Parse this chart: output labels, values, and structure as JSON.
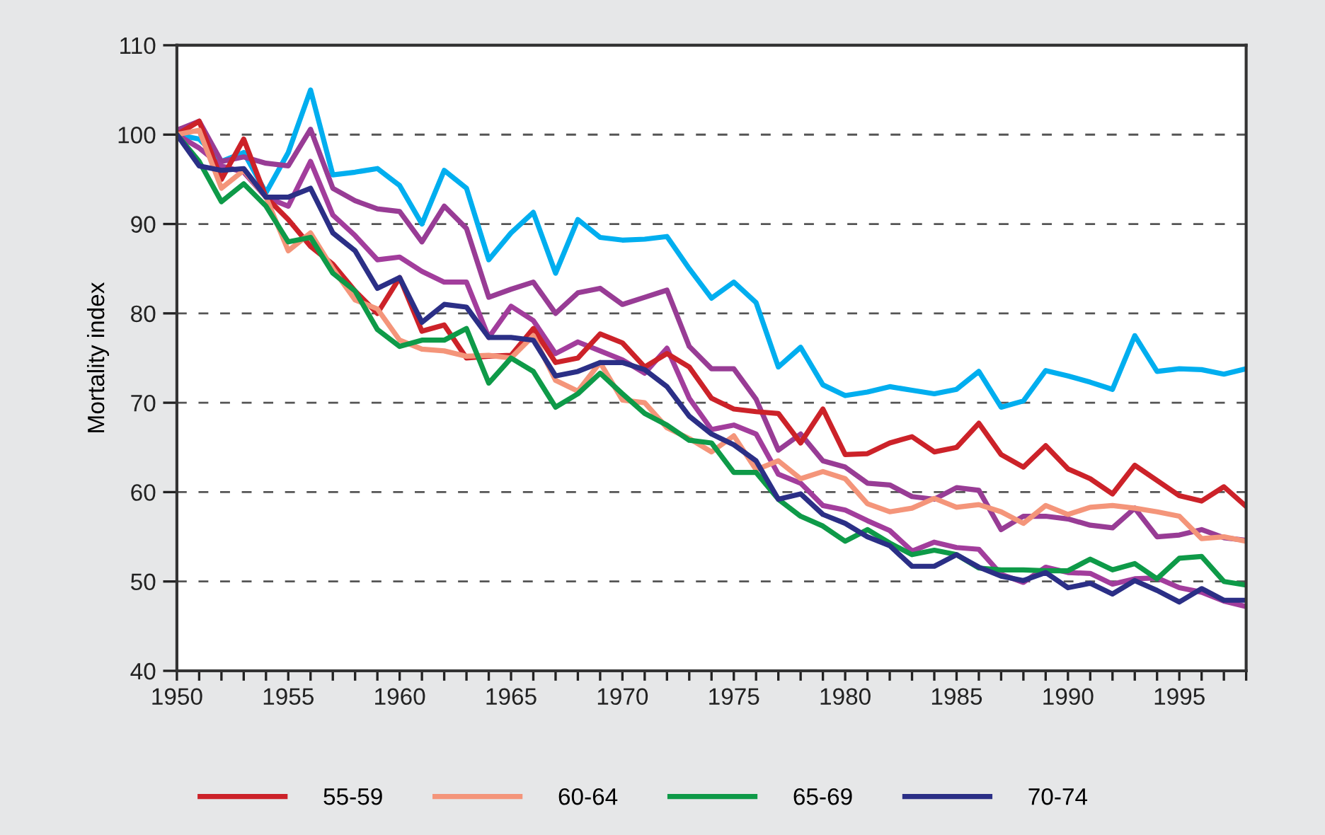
{
  "chart_data": {
    "type": "line",
    "ylabel": "Mortality index",
    "x": [
      1950,
      1951,
      1952,
      1953,
      1954,
      1955,
      1956,
      1957,
      1958,
      1959,
      1960,
      1961,
      1962,
      1963,
      1964,
      1965,
      1966,
      1967,
      1968,
      1969,
      1970,
      1971,
      1972,
      1973,
      1974,
      1975,
      1976,
      1977,
      1978,
      1979,
      1980,
      1981,
      1982,
      1983,
      1984,
      1985,
      1986,
      1987,
      1988,
      1989,
      1990,
      1991,
      1992,
      1993,
      1994,
      1995,
      1996,
      1997,
      1998
    ],
    "xlim": [
      1950,
      1998
    ],
    "ylim": [
      40,
      110
    ],
    "yticks": [
      40,
      50,
      60,
      70,
      80,
      90,
      100,
      110
    ],
    "xticks": [
      1950,
      {
        "value": 1951,
        "label": null
      },
      {
        "value": 1952,
        "label": null
      },
      {
        "value": 1953,
        "label": null
      },
      {
        "value": 1954,
        "label": null
      },
      1955,
      {
        "value": 1956,
        "label": null
      },
      {
        "value": 1957,
        "label": null
      },
      {
        "value": 1958,
        "label": null
      },
      {
        "value": 1959,
        "label": null
      },
      1960,
      {
        "value": 1961,
        "label": null
      },
      {
        "value": 1962,
        "label": null
      },
      {
        "value": 1963,
        "label": null
      },
      {
        "value": 1964,
        "label": null
      },
      1965,
      {
        "value": 1966,
        "label": null
      },
      {
        "value": 1967,
        "label": null
      },
      {
        "value": 1968,
        "label": null
      },
      {
        "value": 1969,
        "label": null
      },
      1970,
      {
        "value": 1971,
        "label": null
      },
      {
        "value": 1972,
        "label": null
      },
      {
        "value": 1973,
        "label": null
      },
      {
        "value": 1974,
        "label": null
      },
      1975,
      {
        "value": 1976,
        "label": null
      },
      {
        "value": 1977,
        "label": null
      },
      {
        "value": 1978,
        "label": null
      },
      {
        "value": 1979,
        "label": null
      },
      1980,
      {
        "value": 1981,
        "label": null
      },
      {
        "value": 1982,
        "label": null
      },
      {
        "value": 1983,
        "label": null
      },
      {
        "value": 1984,
        "label": null
      },
      1985,
      {
        "value": 1986,
        "label": null
      },
      {
        "value": 1987,
        "label": null
      },
      {
        "value": 1988,
        "label": null
      },
      {
        "value": 1989,
        "label": null
      },
      1990,
      {
        "value": 1991,
        "label": null
      },
      {
        "value": 1992,
        "label": null
      },
      {
        "value": 1993,
        "label": null
      },
      {
        "value": 1994,
        "label": null
      },
      1995,
      {
        "value": 1996,
        "label": null
      },
      {
        "value": 1997,
        "label": null
      },
      {
        "value": 1998,
        "label": null
      }
    ],
    "grid": "y",
    "legend": "bottom",
    "marker": "none",
    "line_style": "solid",
    "series": [
      {
        "color": "#00aeef",
        "values": [
          100,
          99.5,
          97,
          98,
          93.5,
          98,
          105,
          95.5,
          95.8,
          96.2,
          94.3,
          90,
          96,
          94,
          86,
          89,
          91.3,
          84.5,
          90.5,
          88.5,
          88.2,
          88.3,
          88.6,
          85,
          81.7,
          83.5,
          81.2,
          74,
          76.2,
          72,
          70.8,
          71.2,
          71.8,
          71.4,
          71,
          71.5,
          73.5,
          69.5,
          70.2,
          73.6,
          73,
          72.3,
          71.5,
          77.5,
          73.5,
          73.8,
          73.7,
          73.2,
          73.8
        ]
      },
      {
        "color": "#983c95",
        "values": [
          100.5,
          101.5,
          97,
          97.5,
          96.8,
          96.5,
          100.6,
          94,
          92.6,
          91.7,
          91.4,
          88,
          92,
          89.5,
          81.8,
          82.7,
          83.5,
          80,
          82.3,
          82.8,
          81,
          81.8,
          82.6,
          76.3,
          73.8,
          73.8,
          70.4,
          64.7,
          66.5,
          63.5,
          62.8,
          61,
          60.8,
          59.5,
          59.2,
          60.5,
          60.2,
          55.8,
          57.3,
          57.3,
          57,
          56.3,
          56,
          58.2,
          55,
          55.2,
          55.8,
          54.9,
          54.6
        ]
      },
      {
        "color": "#a23d9c",
        "values": [
          100,
          98.5,
          96.5,
          95.8,
          93,
          92,
          97,
          91,
          88.7,
          86,
          86.3,
          84.7,
          83.5,
          83.5,
          77.3,
          80.8,
          79.2,
          75.5,
          76.8,
          75.8,
          74.8,
          73.3,
          76.1,
          70.5,
          67,
          67.5,
          66.5,
          62,
          61,
          58.5,
          58,
          56.8,
          55.7,
          53.4,
          54.4,
          53.8,
          53.6,
          50.8,
          49.9,
          51.6,
          51,
          50.9,
          49.7,
          50.3,
          50.4,
          49.3,
          48.8,
          47.8,
          47.2
        ]
      },
      {
        "name": "55-59",
        "color": "#cc2229",
        "values": [
          100,
          101.5,
          95,
          99.5,
          93,
          90.5,
          87.5,
          85.5,
          82.5,
          80,
          84,
          78,
          78.7,
          75,
          75.2,
          75.3,
          78.3,
          74.5,
          75,
          77.7,
          76.7,
          74,
          75.5,
          74,
          70.5,
          69.3,
          69,
          68.8,
          65.5,
          69.3,
          64.2,
          64.3,
          65.5,
          66.2,
          64.5,
          65,
          67.7,
          64.2,
          62.8,
          65.2,
          62.6,
          61.5,
          59.8,
          63,
          61.3,
          59.6,
          59,
          60.6,
          58.4
        ]
      },
      {
        "name": "60-64",
        "color": "#f4957a",
        "values": [
          100,
          100.5,
          94,
          96,
          93,
          87,
          89,
          85,
          81.5,
          80.5,
          77,
          76,
          75.8,
          75.2,
          75.3,
          75,
          77.5,
          72.5,
          71.3,
          74.5,
          70.3,
          70,
          67.2,
          66,
          64.5,
          66.3,
          62.5,
          63.5,
          61.5,
          62.3,
          61.5,
          58.7,
          57.8,
          58.2,
          59.3,
          58.3,
          58.6,
          57.8,
          56.5,
          58.5,
          57.5,
          58.3,
          58.5,
          58.2,
          57.8,
          57.3,
          54.8,
          55,
          54.5
        ]
      },
      {
        "name": "65-69",
        "color": "#0e9a48",
        "values": [
          100,
          97,
          92.5,
          94.5,
          92,
          88,
          88.5,
          84.5,
          82.5,
          78.2,
          76.3,
          77,
          77,
          78.3,
          72.2,
          75,
          73.5,
          69.5,
          71,
          73.3,
          71,
          68.8,
          67.5,
          65.8,
          65.5,
          62.2,
          62.2,
          59.2,
          57.3,
          56.2,
          54.5,
          55.8,
          54.3,
          53,
          53.5,
          53,
          51.5,
          51.3,
          51.3,
          51.2,
          51.2,
          52.5,
          51.3,
          52,
          50.3,
          52.6,
          52.8,
          50,
          49.6
        ]
      },
      {
        "name": "70-74",
        "color": "#2b2f86",
        "values": [
          100,
          96.5,
          96,
          96.2,
          93,
          93,
          94,
          89,
          87,
          82.8,
          84,
          79,
          81,
          80.7,
          77.3,
          77.3,
          77,
          73,
          73.5,
          74.5,
          74.5,
          73.7,
          71.8,
          68.5,
          66.5,
          65.3,
          63.5,
          59.2,
          59.8,
          57.5,
          56.5,
          55,
          54,
          51.7,
          51.7,
          53,
          51.6,
          50.6,
          50.1,
          51,
          49.3,
          49.8,
          48.6,
          50.1,
          49,
          47.7,
          49.2,
          47.9,
          47.9
        ]
      }
    ]
  }
}
